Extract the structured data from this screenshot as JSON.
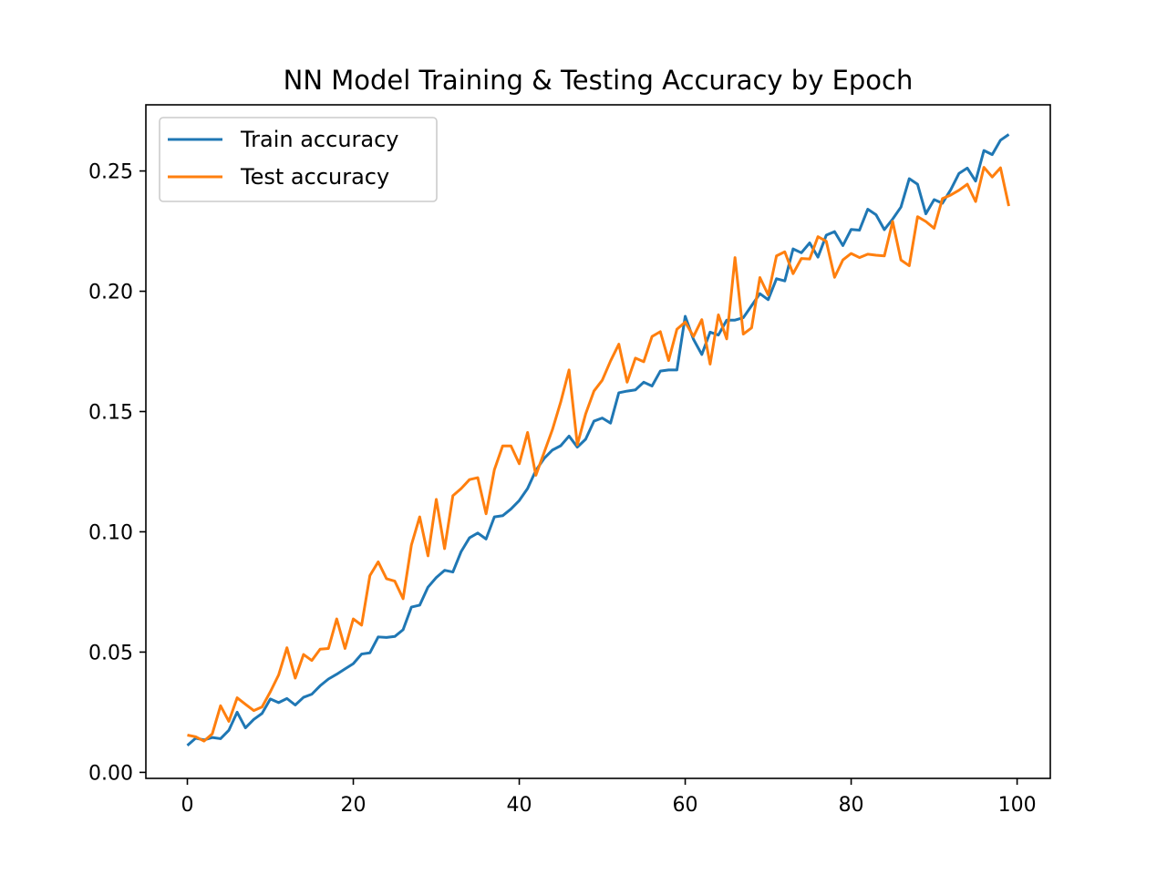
{
  "chart_data": {
    "type": "line",
    "title": "NN Model Training & Testing Accuracy by Epoch",
    "xlabel": "",
    "ylabel": "",
    "xlim": [
      -5,
      104
    ],
    "ylim": [
      -0.0025,
      0.2775
    ],
    "x_ticks": [
      0,
      20,
      40,
      60,
      80,
      100
    ],
    "x_tick_labels": [
      "0",
      "20",
      "40",
      "60",
      "80",
      "100"
    ],
    "y_ticks": [
      0.0,
      0.05,
      0.1,
      0.15,
      0.2,
      0.25
    ],
    "y_tick_labels": [
      "0.00",
      "0.05",
      "0.10",
      "0.15",
      "0.20",
      "0.25"
    ],
    "grid": false,
    "legend_position": "upper-left",
    "series": [
      {
        "name": "Train accuracy",
        "color": "#1f77b4",
        "x": [
          0,
          1,
          2,
          3,
          4,
          5,
          6,
          7,
          8,
          9,
          10,
          11,
          12,
          13,
          14,
          15,
          16,
          17,
          18,
          19,
          20,
          21,
          22,
          23,
          24,
          25,
          26,
          27,
          28,
          29,
          30,
          31,
          32,
          33,
          34,
          35,
          36,
          37,
          38,
          39,
          40,
          41,
          42,
          43,
          44,
          45,
          46,
          47,
          48,
          49,
          50,
          51,
          52,
          53,
          54,
          55,
          56,
          57,
          58,
          59,
          60,
          61,
          62,
          63,
          64,
          65,
          66,
          67,
          68,
          69,
          70,
          71,
          72,
          73,
          74,
          75,
          76,
          77,
          78,
          79,
          80,
          81,
          82,
          83,
          84,
          85,
          86,
          87,
          88,
          89,
          90,
          91,
          92,
          93,
          94,
          95,
          96,
          97,
          98,
          99
        ],
        "values": [
          0.0112,
          0.0142,
          0.0135,
          0.0145,
          0.014,
          0.0175,
          0.025,
          0.0185,
          0.022,
          0.0245,
          0.0305,
          0.029,
          0.0307,
          0.028,
          0.0312,
          0.0325,
          0.036,
          0.0388,
          0.0408,
          0.043,
          0.0452,
          0.0492,
          0.0497,
          0.0563,
          0.0561,
          0.0565,
          0.0593,
          0.0687,
          0.0695,
          0.077,
          0.081,
          0.084,
          0.0833,
          0.0918,
          0.0975,
          0.0995,
          0.097,
          0.1062,
          0.1067,
          0.1095,
          0.113,
          0.118,
          0.1255,
          0.1305,
          0.134,
          0.1358,
          0.1398,
          0.1352,
          0.1385,
          0.146,
          0.1473,
          0.1452,
          0.1578,
          0.1585,
          0.159,
          0.1622,
          0.1606,
          0.1668,
          0.1673,
          0.1673,
          0.1896,
          0.18,
          0.1737,
          0.183,
          0.1818,
          0.188,
          0.188,
          0.189,
          0.194,
          0.199,
          0.1965,
          0.2052,
          0.2043,
          0.2176,
          0.216,
          0.2201,
          0.2142,
          0.2233,
          0.2248,
          0.219,
          0.2257,
          0.2254,
          0.2341,
          0.2318,
          0.2256,
          0.23,
          0.235,
          0.2468,
          0.2445,
          0.2322,
          0.2381,
          0.2366,
          0.2422,
          0.249,
          0.2512,
          0.2458,
          0.2585,
          0.2568,
          0.2628,
          0.2652
        ]
      },
      {
        "name": "Test accuracy",
        "color": "#ff7f0e",
        "x": [
          0,
          1,
          2,
          3,
          4,
          5,
          6,
          7,
          8,
          9,
          10,
          11,
          12,
          13,
          14,
          15,
          16,
          17,
          18,
          19,
          20,
          21,
          22,
          23,
          24,
          25,
          26,
          27,
          28,
          29,
          30,
          31,
          32,
          33,
          34,
          35,
          36,
          37,
          38,
          39,
          40,
          41,
          42,
          43,
          44,
          45,
          46,
          47,
          48,
          49,
          50,
          51,
          52,
          53,
          54,
          55,
          56,
          57,
          58,
          59,
          60,
          61,
          62,
          63,
          64,
          65,
          66,
          67,
          68,
          69,
          70,
          71,
          72,
          73,
          74,
          75,
          76,
          77,
          78,
          79,
          80,
          81,
          82,
          83,
          84,
          85,
          86,
          87,
          88,
          89,
          90,
          91,
          92,
          93,
          94,
          95,
          96,
          97,
          98,
          99
        ],
        "values": [
          0.0155,
          0.0148,
          0.013,
          0.016,
          0.0277,
          0.0212,
          0.031,
          0.0283,
          0.0257,
          0.0272,
          0.0335,
          0.0405,
          0.0518,
          0.0392,
          0.049,
          0.0465,
          0.0512,
          0.0515,
          0.0638,
          0.0515,
          0.0638,
          0.0612,
          0.0818,
          0.0875,
          0.0805,
          0.0795,
          0.0722,
          0.0945,
          0.1062,
          0.09,
          0.1135,
          0.093,
          0.115,
          0.118,
          0.1217,
          0.1225,
          0.1075,
          0.1258,
          0.1357,
          0.1357,
          0.1283,
          0.1413,
          0.1235,
          0.133,
          0.1425,
          0.154,
          0.1673,
          0.1362,
          0.149,
          0.1585,
          0.163,
          0.171,
          0.178,
          0.1622,
          0.1722,
          0.1707,
          0.1812,
          0.1832,
          0.1712,
          0.1842,
          0.1872,
          0.1812,
          0.1882,
          0.1697,
          0.1902,
          0.1802,
          0.214,
          0.1822,
          0.1848,
          0.2057,
          0.1985,
          0.2147,
          0.2164,
          0.2073,
          0.2136,
          0.2134,
          0.2227,
          0.2208,
          0.2058,
          0.213,
          0.2157,
          0.214,
          0.2154,
          0.215,
          0.2147,
          0.229,
          0.213,
          0.2106,
          0.231,
          0.229,
          0.2262,
          0.2385,
          0.24,
          0.242,
          0.2445,
          0.2373,
          0.2515,
          0.2475,
          0.2513,
          0.2354
        ]
      }
    ]
  }
}
